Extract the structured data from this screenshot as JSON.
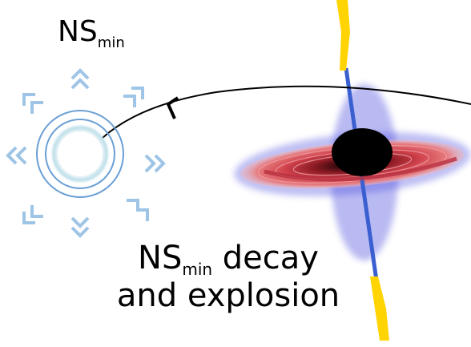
{
  "labels": {
    "ns_base": "NS",
    "ns_sub": "min",
    "caption_line1_after": "decay",
    "caption_line2": "and explosion"
  },
  "colors": {
    "arrows": "#9ec4e6",
    "rings": "#6a9fd6",
    "jet": "#ffd400",
    "jet_axis": "#3a5fd0",
    "disk_red": "#c8323c",
    "disk_blue": "#3a3adb",
    "black_hole": "#000000",
    "orbit": "#000000"
  },
  "icons": [
    "expansion-chevron-icon",
    "neutron-star-icon",
    "black-hole-icon",
    "accretion-disk-icon",
    "jet-icon",
    "orbit-arrow-icon"
  ]
}
